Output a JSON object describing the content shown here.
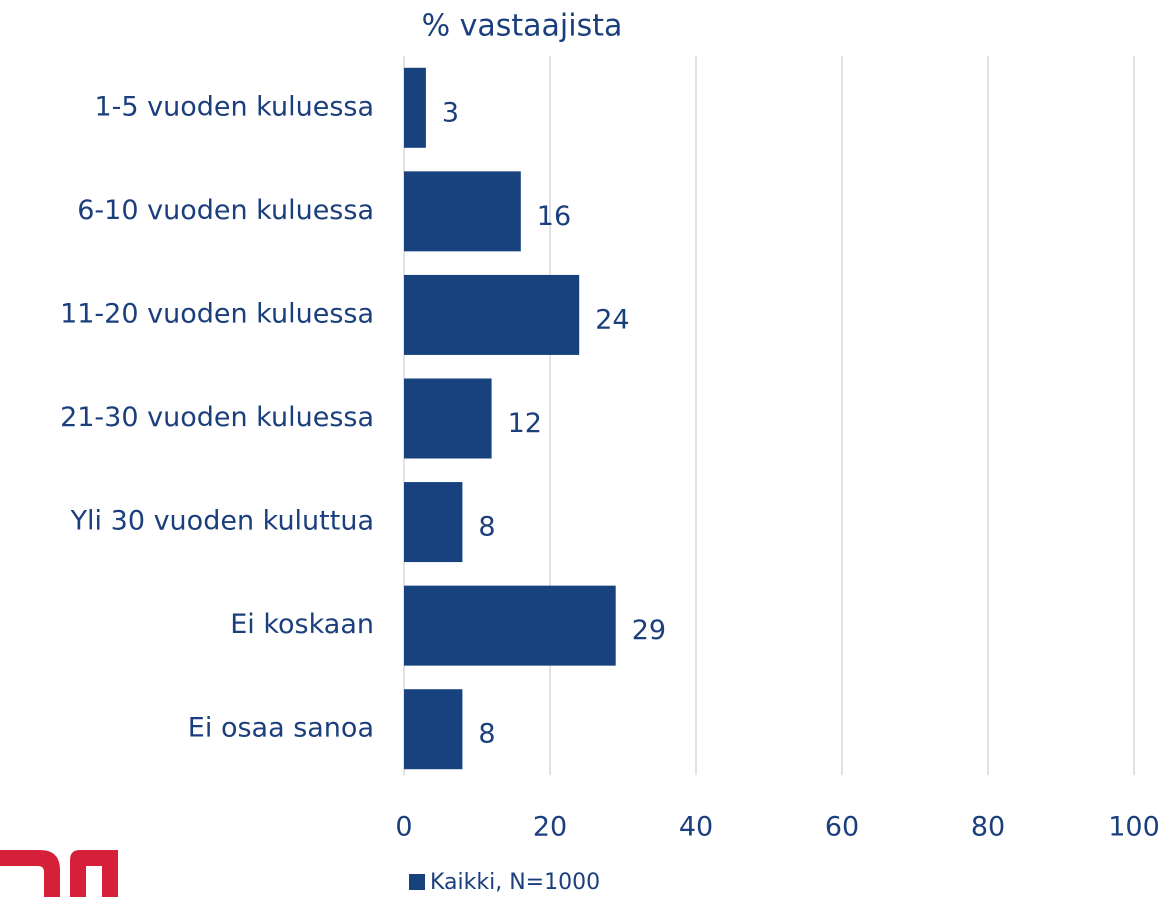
{
  "chart_data": {
    "type": "bar",
    "orientation": "horizontal",
    "title": "% vastaajista",
    "categories": [
      "1-5 vuoden kuluessa",
      "6-10 vuoden kuluessa",
      "11-20 vuoden kuluessa",
      "21-30 vuoden kuluessa",
      "Yli 30 vuoden kuluttua",
      "Ei koskaan",
      "Ei osaa sanoa"
    ],
    "series": [
      {
        "name": "Kaikki, N=1000",
        "color": "#17427e",
        "values": [
          3,
          16,
          24,
          12,
          8,
          29,
          8
        ]
      }
    ],
    "xlim": [
      0,
      100
    ],
    "xticks": [
      0,
      20,
      40,
      60,
      80,
      100
    ],
    "grid": true,
    "legend": "bottom"
  }
}
